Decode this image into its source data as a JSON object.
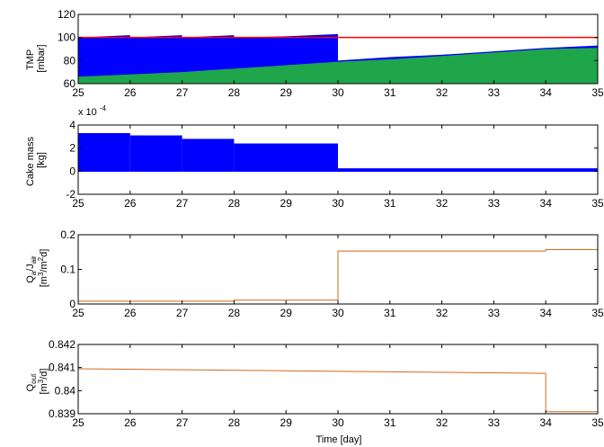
{
  "figure": {
    "xlabel": "Time [day]",
    "xticks": [
      25,
      26,
      27,
      28,
      29,
      30,
      31,
      32,
      33,
      34,
      35
    ]
  },
  "chart_data": [
    {
      "type": "area",
      "ylabel_main": "TMP",
      "ylabel_unit": "[mbar]",
      "xlim": [
        25,
        35
      ],
      "ylim": [
        60,
        120
      ],
      "yticks": [
        60,
        80,
        100,
        120
      ],
      "grid": false,
      "series": [
        {
          "role": "tmp-band-upper",
          "color": "#0000ff",
          "x": [
            25,
            26,
            26,
            27,
            27,
            28,
            28,
            29,
            30,
            30,
            31,
            32,
            33,
            34,
            35
          ],
          "y": [
            100,
            102,
            100,
            102,
            100,
            102,
            100,
            101,
            103,
            80,
            83,
            85,
            88,
            91,
            93
          ]
        },
        {
          "role": "tmp-lower",
          "color": "#1fa64a",
          "x": [
            25,
            26,
            27,
            28,
            29,
            30,
            31,
            32,
            33,
            34,
            35
          ],
          "y": [
            66,
            68,
            70,
            73,
            76,
            79,
            81,
            84,
            87,
            90,
            91
          ]
        },
        {
          "role": "tmp-limit",
          "color": "#ff0000",
          "x": [
            25,
            35
          ],
          "y": [
            100,
            100
          ]
        }
      ]
    },
    {
      "type": "bar",
      "ylabel_main": "Cake mass",
      "ylabel_unit": "[kg]",
      "yscale_label": "x 10",
      "yscale_exp": "-4",
      "xlim": [
        25,
        35
      ],
      "ylim": [
        -2,
        4
      ],
      "yticks": [
        -2,
        0,
        2,
        4
      ],
      "grid": false,
      "series": [
        {
          "role": "cake-mass-band",
          "color": "#0000ff",
          "segments": [
            {
              "x0": 25,
              "x1": 26,
              "top": 3.3
            },
            {
              "x0": 26,
              "x1": 27,
              "top": 3.1
            },
            {
              "x0": 27,
              "x1": 28,
              "top": 2.8
            },
            {
              "x0": 28,
              "x1": 30,
              "top": 2.4
            },
            {
              "x0": 30,
              "x1": 35,
              "top": 0.25
            }
          ],
          "bottom": -0.05
        }
      ]
    },
    {
      "type": "line",
      "ylabel_main": "Q",
      "ylabel_main_sub": "a",
      "ylabel_mid": "/J",
      "ylabel_mid_sub": "air",
      "ylabel_unit_pre": "[m",
      "ylabel_unit_sup1": "3",
      "ylabel_unit_mid": "/m",
      "ylabel_unit_sup2": "2",
      "ylabel_unit_post": "d]",
      "xlim": [
        25,
        35
      ],
      "ylim": [
        0,
        0.2
      ],
      "yticks": [
        0,
        0.1,
        0.2
      ],
      "grid": false,
      "series": [
        {
          "role": "qa-ratio",
          "color": "#d2691e",
          "x": [
            25,
            28,
            28,
            30,
            30,
            34,
            34,
            35
          ],
          "y": [
            0.008,
            0.008,
            0.011,
            0.011,
            0.153,
            0.153,
            0.157,
            0.157
          ]
        }
      ]
    },
    {
      "type": "line",
      "ylabel_main": "Q",
      "ylabel_main_sub": "out",
      "ylabel_unit_pre": "[m",
      "ylabel_unit_sup1": "3",
      "ylabel_unit_post": "/d]",
      "xlim": [
        25,
        35
      ],
      "ylim": [
        0.839,
        0.842
      ],
      "yticks": [
        0.839,
        0.84,
        0.841,
        0.842
      ],
      "grid": false,
      "series": [
        {
          "role": "q-out",
          "color": "#d2691e",
          "x": [
            25,
            34,
            34,
            35
          ],
          "y": [
            0.84095,
            0.84075,
            0.83909,
            0.83909
          ]
        }
      ]
    }
  ]
}
